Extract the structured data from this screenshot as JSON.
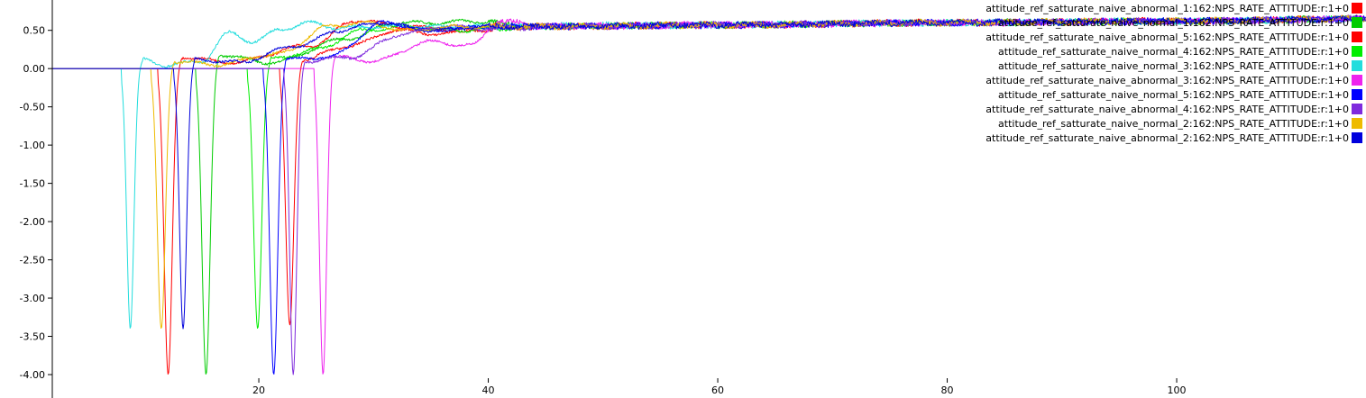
{
  "chart_data": {
    "type": "line",
    "title": "",
    "xlabel": "",
    "ylabel": "",
    "xlim": [
      2.0,
      116.5
    ],
    "ylim": [
      -4.05,
      0.62
    ],
    "grid": false,
    "legend_placement": "top-right",
    "x_ticks": [
      20,
      40,
      60,
      80,
      100
    ],
    "y_ticks": [
      0.5,
      0.0,
      -0.5,
      -1.0,
      -1.5,
      -2.0,
      -2.5,
      -3.0,
      -3.5,
      -4.0
    ],
    "x_tick_labels": [
      "20",
      "40",
      "60",
      "80",
      "100"
    ],
    "y_tick_labels": [
      "0.50",
      "0.00",
      "-0.50",
      "-1.00",
      "-1.50",
      "-2.00",
      "-2.50",
      "-3.00",
      "-3.50",
      "-4.00"
    ],
    "series": [
      {
        "name": "attitude_ref_satturate_naive_abnormal_1:162:NPS_RATE_ATTITUDE:r:1+0",
        "color": "#ff0000",
        "start": 11.2,
        "dip": -4.0,
        "dip_x": 12.1,
        "x": [
          2,
          11.2,
          12.1,
          13.3,
          17.5,
          24.5,
          28.5,
          32.5,
          38,
          45,
          60,
          80,
          100,
          116.5
        ],
        "values": [
          0.0,
          0.0,
          -4.0,
          0.15,
          0.08,
          0.3,
          0.63,
          0.55,
          0.5,
          0.55,
          0.57,
          0.6,
          0.62,
          0.65
        ]
      },
      {
        "name": "attitude_ref_satturate_naive_normal_1:162:NPS_RATE_ATTITUDE:r:1+0",
        "color": "#00cc00",
        "start": 14.5,
        "dip": -4.0,
        "dip_x": 15.4,
        "x": [
          2,
          14.5,
          15.4,
          16.5,
          21,
          28,
          32,
          36,
          38,
          45,
          60,
          80,
          100,
          116.5
        ],
        "values": [
          0.0,
          0.0,
          -4.0,
          0.18,
          0.08,
          0.4,
          0.6,
          0.6,
          0.62,
          0.55,
          0.57,
          0.6,
          0.62,
          0.65
        ]
      },
      {
        "name": "attitude_ref_satturate_naive_abnormal_5:162:NPS_RATE_ATTITUDE:r:1+0",
        "color": "#ff0000",
        "start": 21.8,
        "dip": -3.35,
        "dip_x": 22.7,
        "x": [
          2,
          21.8,
          22.7,
          23.8,
          28,
          32,
          36,
          40,
          45,
          60,
          80,
          100,
          116.5
        ],
        "values": [
          0.0,
          0.0,
          -3.35,
          0.12,
          0.3,
          0.5,
          0.45,
          0.55,
          0.55,
          0.57,
          0.6,
          0.62,
          0.65
        ]
      },
      {
        "name": "attitude_ref_satturate_naive_normal_4:162:NPS_RATE_ATTITUDE:r:1+0",
        "color": "#00ee00",
        "start": 19.0,
        "dip": -3.4,
        "dip_x": 19.9,
        "x": [
          2,
          19.0,
          19.9,
          21.0,
          25,
          29,
          33,
          37,
          45,
          60,
          80,
          100,
          116.5
        ],
        "values": [
          0.0,
          0.0,
          -3.4,
          0.12,
          0.25,
          0.5,
          0.55,
          0.5,
          0.55,
          0.57,
          0.6,
          0.62,
          0.65
        ]
      },
      {
        "name": "attitude_ref_satturate_naive_normal_3:162:NPS_RATE_ATTITUDE:r:1+0",
        "color": "#22dddd",
        "start": 8.0,
        "dip": -3.4,
        "dip_x": 8.8,
        "x": [
          2,
          8.0,
          8.8,
          9.9,
          12,
          15,
          17.5,
          19.5,
          22,
          24.5,
          27,
          30,
          35,
          45,
          60,
          80,
          100,
          116.5
        ],
        "values": [
          0.0,
          0.0,
          -3.4,
          0.12,
          0.04,
          0.1,
          0.47,
          0.35,
          0.52,
          0.6,
          0.53,
          0.55,
          0.55,
          0.56,
          0.57,
          0.6,
          0.62,
          0.65
        ]
      },
      {
        "name": "attitude_ref_satturate_naive_abnormal_3:162:NPS_RATE_ATTITUDE:r:1+0",
        "color": "#ee22ee",
        "start": 24.8,
        "dip": -4.0,
        "dip_x": 25.6,
        "x": [
          2,
          24.8,
          25.6,
          26.6,
          30,
          35,
          38.5,
          41,
          45,
          60,
          80,
          100,
          116.5
        ],
        "values": [
          0.0,
          0.0,
          -4.0,
          0.15,
          0.1,
          0.35,
          0.3,
          0.62,
          0.55,
          0.57,
          0.6,
          0.62,
          0.65
        ]
      },
      {
        "name": "attitude_ref_satturate_naive_normal_5:162:NPS_RATE_ATTITUDE:r:1+0",
        "color": "#0000ff",
        "start": 20.4,
        "dip": -4.0,
        "dip_x": 21.3,
        "x": [
          2,
          20.4,
          21.3,
          22.3,
          26,
          31,
          35,
          40,
          45,
          60,
          80,
          100,
          116.5
        ],
        "values": [
          0.0,
          0.0,
          -4.0,
          0.12,
          0.15,
          0.6,
          0.5,
          0.55,
          0.55,
          0.57,
          0.6,
          0.62,
          0.65
        ]
      },
      {
        "name": "attitude_ref_satturate_naive_abnormal_4:162:NPS_RATE_ATTITUDE:r:1+0",
        "color": "#7f2bdd",
        "start": 22.2,
        "dip": -4.0,
        "dip_x": 23.0,
        "x": [
          2,
          22.2,
          23.0,
          24.0,
          28,
          32.5,
          36,
          40,
          45,
          60,
          80,
          100,
          116.5
        ],
        "values": [
          0.0,
          0.0,
          -4.0,
          0.1,
          0.15,
          0.45,
          0.55,
          0.52,
          0.55,
          0.57,
          0.6,
          0.62,
          0.65
        ]
      },
      {
        "name": "attitude_ref_satturate_naive_normal_2:162:NPS_RATE_ATTITUDE:r:1+0",
        "color": "#eebb00",
        "start": 10.6,
        "dip": -3.4,
        "dip_x": 11.5,
        "x": [
          2,
          10.6,
          11.5,
          12.6,
          16,
          22,
          26,
          29,
          33,
          38,
          45,
          60,
          80,
          100,
          116.5
        ],
        "values": [
          0.0,
          0.0,
          -3.4,
          0.1,
          0.05,
          0.2,
          0.55,
          0.6,
          0.5,
          0.55,
          0.55,
          0.57,
          0.6,
          0.62,
          0.65
        ]
      },
      {
        "name": "attitude_ref_satturate_naive_abnormal_2:162:NPS_RATE_ATTITUDE:r:1+0",
        "color": "#0000dd",
        "start": 12.6,
        "dip": -3.4,
        "dip_x": 13.4,
        "x": [
          2,
          12.6,
          13.4,
          14.4,
          18,
          23.5,
          27,
          30.5,
          35,
          40,
          45,
          60,
          80,
          100,
          116.5
        ],
        "values": [
          0.0,
          0.0,
          -3.4,
          0.12,
          0.08,
          0.3,
          0.5,
          0.6,
          0.5,
          0.55,
          0.55,
          0.57,
          0.6,
          0.62,
          0.65
        ]
      }
    ]
  }
}
